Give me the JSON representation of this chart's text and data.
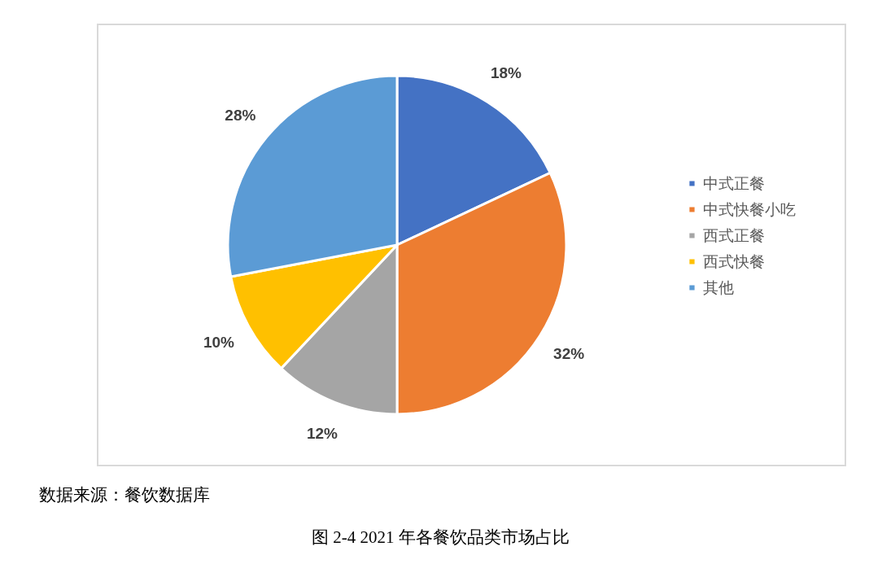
{
  "chart_data": {
    "type": "pie",
    "categories": [
      "中式正餐",
      "中式快餐小吃",
      "西式正餐",
      "西式快餐",
      "其他"
    ],
    "values": [
      18,
      32,
      12,
      10,
      28
    ],
    "colors": [
      "#4472c4",
      "#ed7d31",
      "#a5a5a5",
      "#ffc000",
      "#5b9bd5"
    ],
    "value_labels": [
      "18%",
      "32%",
      "12%",
      "10%",
      "28%"
    ],
    "legend": "right",
    "annotations": [
      "数据来源：餐饮数据库",
      "图 2-4 2021 年各餐饮品类市场占比"
    ]
  }
}
